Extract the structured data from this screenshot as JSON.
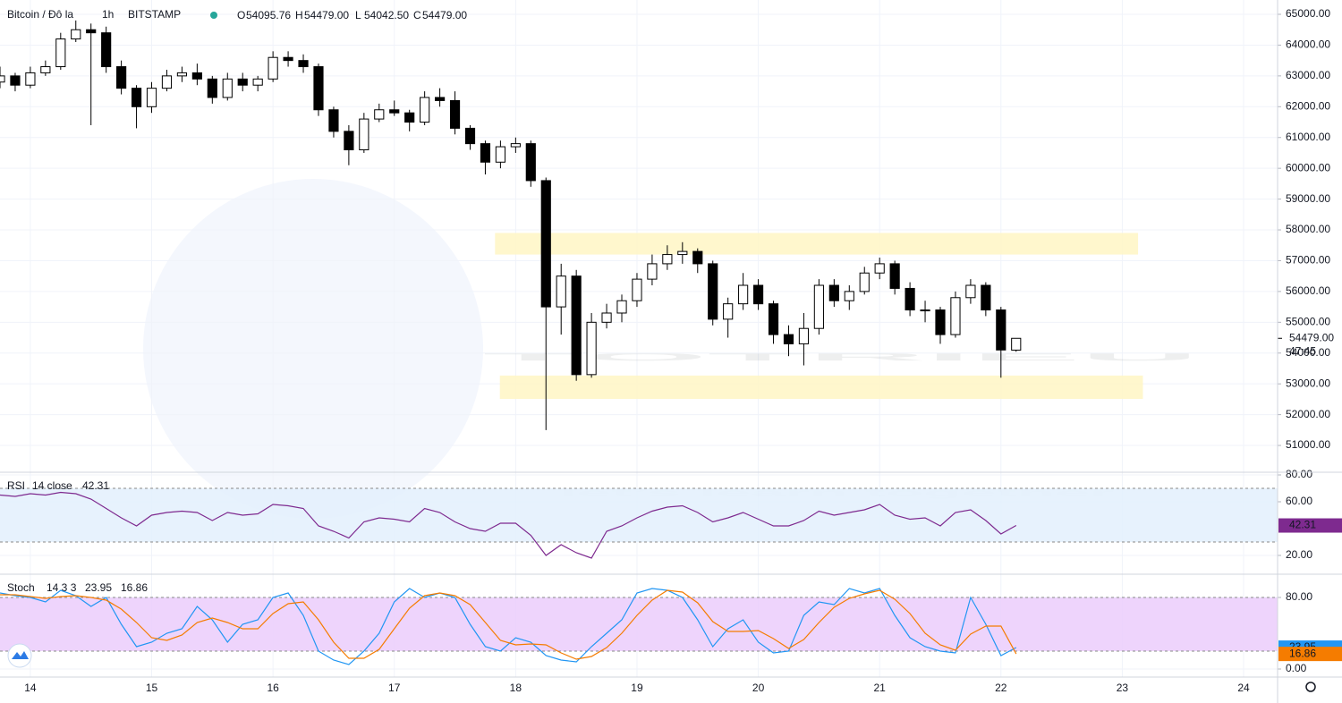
{
  "chart_data": [
    {
      "type": "candlestick",
      "title": "Bitcoin / Đô la",
      "interval": "1h",
      "exchange": "BITSTAMP",
      "ohlc_keys": [
        "O",
        "H",
        "L",
        "C"
      ],
      "ohlc_labels": [
        "54095.76",
        "54479.00",
        "54042.50",
        "54479.00"
      ],
      "x": [
        13.75,
        13.875,
        14,
        14.125,
        14.25,
        14.375,
        14.5,
        14.625,
        14.75,
        14.875,
        15,
        15.125,
        15.25,
        15.375,
        15.5,
        15.625,
        15.75,
        15.875,
        16,
        16.125,
        16.25,
        16.375,
        16.5,
        16.625,
        16.75,
        16.875,
        17,
        17.125,
        17.25,
        17.375,
        17.5,
        17.625,
        17.75,
        17.875,
        18,
        18.125,
        18.25,
        18.375,
        18.5,
        18.625,
        18.75,
        18.875,
        19,
        19.125,
        19.25,
        19.375,
        19.5,
        19.625,
        19.75,
        19.875,
        20,
        20.125,
        20.25,
        20.375,
        20.5,
        20.625,
        20.75,
        20.875,
        21,
        21.125,
        21.25,
        21.375,
        21.5,
        21.625,
        21.75,
        21.875,
        22,
        22.125
      ],
      "open": [
        62800,
        63000,
        62700,
        63100,
        63300,
        64200,
        64500,
        64400,
        63300,
        62600,
        62000,
        62600,
        63000,
        63100,
        62900,
        62300,
        62900,
        62700,
        62900,
        63600,
        63500,
        63300,
        61900,
        61200,
        60600,
        61600,
        61900,
        61800,
        61500,
        62300,
        62200,
        61300,
        60800,
        60200,
        60700,
        60800,
        59600,
        55500,
        56500,
        53300,
        55000,
        55300,
        55700,
        56400,
        56900,
        57200,
        57300,
        56900,
        55100,
        55600,
        56200,
        55600,
        54600,
        54300,
        54800,
        56200,
        55700,
        56000,
        56600,
        56900,
        56100,
        55400,
        55400,
        54600,
        55800,
        56200,
        55400,
        54095.76
      ],
      "high": [
        63300,
        63100,
        63300,
        63500,
        64400,
        64800,
        64700,
        64600,
        63500,
        62700,
        62800,
        63200,
        63300,
        63400,
        63000,
        63100,
        63100,
        63000,
        63800,
        63800,
        63700,
        63400,
        62000,
        61400,
        61800,
        62100,
        62200,
        61900,
        62500,
        62600,
        62500,
        61400,
        60900,
        60900,
        61000,
        60900,
        59700,
        56900,
        56700,
        55300,
        55600,
        55900,
        56600,
        57200,
        57500,
        57600,
        57400,
        57000,
        55800,
        56600,
        56400,
        55700,
        54900,
        55300,
        56400,
        56400,
        56200,
        56800,
        57100,
        57000,
        56300,
        55700,
        55500,
        56000,
        56400,
        56300,
        55500,
        54479
      ],
      "low": [
        62600,
        62500,
        62600,
        63000,
        63200,
        64100,
        61400,
        63100,
        62400,
        61300,
        61800,
        62500,
        62800,
        62700,
        62100,
        62200,
        62500,
        62500,
        62800,
        63300,
        63100,
        61700,
        61000,
        60100,
        60500,
        61500,
        61700,
        61200,
        61400,
        62000,
        61100,
        60600,
        59800,
        60000,
        60500,
        59400,
        51500,
        54600,
        53100,
        53200,
        54800,
        55000,
        55500,
        56200,
        56700,
        56900,
        56600,
        54900,
        54500,
        55400,
        55400,
        54300,
        53900,
        53600,
        54600,
        55500,
        55400,
        55900,
        56400,
        55900,
        55200,
        55000,
        54300,
        54500,
        55600,
        55200,
        53200,
        54042.5
      ],
      "close": [
        63000,
        62700,
        63100,
        63300,
        64200,
        64500,
        64400,
        63300,
        62600,
        62000,
        62600,
        63000,
        63100,
        62900,
        62300,
        62900,
        62700,
        62900,
        63600,
        63500,
        63300,
        61900,
        61200,
        60600,
        61600,
        61900,
        61800,
        61500,
        62300,
        62200,
        61300,
        60800,
        60200,
        60700,
        60800,
        59600,
        55500,
        56500,
        53300,
        55000,
        55300,
        55700,
        56400,
        56900,
        57200,
        57300,
        56900,
        55100,
        55600,
        56200,
        55600,
        54600,
        54300,
        54800,
        56200,
        55700,
        56000,
        56600,
        56900,
        56100,
        55400,
        55400,
        54600,
        55800,
        56200,
        55400,
        54100,
        54479
      ],
      "up_color": "#ffffff",
      "down_color": "#000000",
      "xlim": [
        13.75,
        24.28
      ],
      "xticks": [
        14,
        15,
        16,
        17,
        18,
        19,
        20,
        21,
        22,
        23,
        24
      ],
      "ylim": [
        50130,
        65465
      ],
      "yticks": [
        {
          "value": 51000,
          "label": "51000.00"
        },
        {
          "value": 52000,
          "label": "52000.00"
        },
        {
          "value": 53000,
          "label": "53000.00"
        },
        {
          "value": 54000,
          "label": "54000.00"
        },
        {
          "value": 55000,
          "label": "55000.00"
        },
        {
          "value": 56000,
          "label": "56000.00"
        },
        {
          "value": 57000,
          "label": "57000.00"
        },
        {
          "value": 58000,
          "label": "58000.00"
        },
        {
          "value": 59000,
          "label": "59000.00"
        },
        {
          "value": 60000,
          "label": "60000.00"
        },
        {
          "value": 61000,
          "label": "61000.00"
        },
        {
          "value": 62000,
          "label": "62000.00"
        },
        {
          "value": 63000,
          "label": "63000.00"
        },
        {
          "value": 64000,
          "label": "64000.00"
        },
        {
          "value": 65000,
          "label": "65000.00"
        }
      ],
      "last_price": {
        "value": 54479,
        "label": "54479.00"
      },
      "countdown": "47:45",
      "zones": [
        {
          "ylim": [
            57200,
            57900
          ],
          "xlim": [
            17.83,
            23.13
          ],
          "color": "#fff6c4"
        },
        {
          "ylim": [
            52510,
            53270
          ],
          "xlim": [
            17.87,
            23.17
          ],
          "color": "#fff6c4"
        }
      ],
      "watermark": {
        "brand": "TOTRIEU",
        "tagline": "let’s learn together"
      }
    },
    {
      "type": "line",
      "title": "RSI",
      "params": "14 close",
      "ylim": [
        6,
        82
      ],
      "yticks": [
        {
          "value": 20,
          "label": "20.00"
        },
        {
          "value": 60,
          "label": "60.00"
        },
        {
          "value": 80,
          "label": "80.00"
        }
      ],
      "bands": [
        30,
        70
      ],
      "band_color": "#e3f0fd",
      "series": [
        {
          "color": "#7e2a8f",
          "values": [
            65,
            64,
            66,
            65,
            67,
            66,
            62,
            55,
            48,
            42,
            50,
            52,
            53,
            52,
            46,
            52,
            50,
            51,
            58,
            57,
            55,
            42,
            38,
            33,
            45,
            48,
            47,
            45,
            55,
            52,
            45,
            40,
            38,
            44,
            44,
            35,
            20,
            28,
            22,
            18,
            38,
            42,
            48,
            53,
            56,
            57,
            52,
            45,
            48,
            52,
            47,
            42,
            42,
            46,
            53,
            50,
            52,
            54,
            58,
            50,
            47,
            48,
            42,
            52,
            54,
            46,
            36,
            42.31
          ]
        }
      ]
    },
    {
      "type": "line",
      "title": "Stoch",
      "params": "14 3 3",
      "ylim": [
        -9,
        106
      ],
      "yticks": [
        {
          "value": 0,
          "label": "0.00"
        },
        {
          "value": 80,
          "label": "80.00"
        }
      ],
      "bands": [
        20,
        80
      ],
      "band_color": "#ebcdfc",
      "series": [
        {
          "color": "#2196f3",
          "values": [
            85,
            82,
            80,
            75,
            88,
            82,
            70,
            80,
            50,
            25,
            30,
            40,
            45,
            70,
            55,
            30,
            50,
            55,
            80,
            85,
            60,
            20,
            10,
            5,
            20,
            40,
            75,
            90,
            80,
            85,
            80,
            50,
            25,
            20,
            35,
            30,
            15,
            10,
            8,
            25,
            40,
            55,
            85,
            90,
            88,
            80,
            55,
            25,
            45,
            55,
            30,
            18,
            20,
            60,
            75,
            72,
            90,
            85,
            90,
            60,
            35,
            25,
            20,
            18,
            80,
            50,
            15,
            23.95
          ]
        },
        {
          "color": "#f57c00",
          "values": [
            83,
            83,
            81,
            79,
            81,
            82,
            80,
            77,
            67,
            52,
            35,
            32,
            38,
            52,
            57,
            52,
            45,
            45,
            62,
            73,
            75,
            55,
            30,
            12,
            12,
            22,
            45,
            68,
            82,
            85,
            82,
            72,
            52,
            32,
            27,
            28,
            27,
            18,
            11,
            14,
            24,
            40,
            60,
            77,
            88,
            86,
            74,
            53,
            42,
            42,
            43,
            34,
            23,
            33,
            52,
            69,
            79,
            84,
            88,
            78,
            62,
            40,
            27,
            21,
            39,
            48,
            48,
            16.86
          ]
        }
      ]
    }
  ]
}
